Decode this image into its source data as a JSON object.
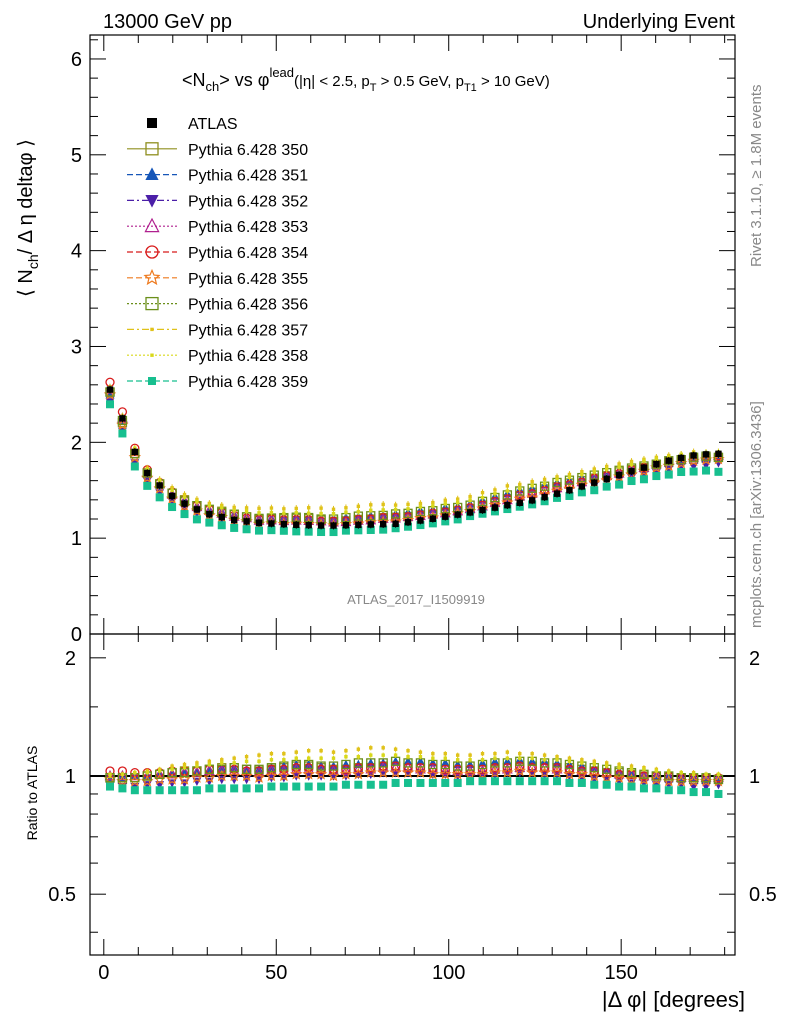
{
  "header": {
    "left": "13000 GeV pp",
    "right": "Underlying Event"
  },
  "plot_title": {
    "main": "<N",
    "main_sub": "ch",
    "main_rest": "> vs φ",
    "main_sup": "lead",
    "cuts": "(|η| < 2.5, p",
    "cuts_sub1": "T",
    "cuts_mid": " > 0.5 GeV, p",
    "cuts_sub2": "T1",
    "cuts_end": " > 10 GeV)"
  },
  "side_labels": {
    "rivet": "Rivet 3.1.10, ≥ 1.8M events",
    "mcplots": "mcplots.cern.ch [arXiv:1306.3436]",
    "analysis": "ATLAS_2017_I1509919"
  },
  "axes": {
    "ylabel_main": "⟨ N",
    "ylabel_main_sub": "ch",
    "ylabel_main_rest": "/ Δ η deltaφ ⟩",
    "ylabel_ratio": "Ratio to ATLAS",
    "xlabel": "|Δ φ| [degrees]",
    "main_ticks": [
      "0",
      "1",
      "2",
      "3",
      "4",
      "5",
      "6"
    ],
    "ratio_ticks": [
      "0.5",
      "1",
      "2"
    ],
    "x_ticks": [
      "0",
      "50",
      "100",
      "150"
    ]
  },
  "legend": [
    {
      "label": "ATLAS",
      "color": "#000000",
      "marker": "filled-square",
      "line": "none"
    },
    {
      "label": "Pythia 6.428 350",
      "color": "#8f8f1f",
      "marker": "open-square",
      "line": "solid"
    },
    {
      "label": "Pythia 6.428 351",
      "color": "#1656b8",
      "marker": "filled-triangle-up",
      "line": "dashed"
    },
    {
      "label": "Pythia 6.428 352",
      "color": "#4b1fa8",
      "marker": "filled-triangle-down",
      "line": "dashdot"
    },
    {
      "label": "Pythia 6.428 353",
      "color": "#b0208f",
      "marker": "open-triangle-up",
      "line": "dotted"
    },
    {
      "label": "Pythia 6.428 354",
      "color": "#d81b1b",
      "marker": "open-circle",
      "line": "dashed"
    },
    {
      "label": "Pythia 6.428 355",
      "color": "#ee7a1e",
      "marker": "open-star",
      "line": "dashed"
    },
    {
      "label": "Pythia 6.428 356",
      "color": "#6b8f1a",
      "marker": "open-square",
      "line": "dotted"
    },
    {
      "label": "Pythia 6.428 357",
      "color": "#e0c21a",
      "marker": "small-dot",
      "line": "dashdot"
    },
    {
      "label": "Pythia 6.428 358",
      "color": "#d8d81a",
      "marker": "small-dot",
      "line": "dotted"
    },
    {
      "label": "Pythia 6.428 359",
      "color": "#17bf8f",
      "marker": "filled-square",
      "line": "dashed"
    }
  ],
  "chart_data": {
    "type": "scatter",
    "title": "<Nch> vs φlead (|η| < 2.5, pT > 0.5 GeV, pT1 > 10 GeV)",
    "xlabel": "|Δ φ| [degrees]",
    "ylabel": "⟨ Nch / Δ η deltaφ ⟩",
    "ratio_ylabel": "Ratio to ATLAS",
    "xlim": [
      -4,
      183
    ],
    "ylim": [
      0,
      6.25
    ],
    "ratio_ylim": [
      0.35,
      2.3
    ],
    "ratio_log_scale": true,
    "x_spacing": 3.6,
    "x_first": 1.8,
    "n_points": 50,
    "reference": {
      "name": "ATLAS",
      "knots_x": [
        1.8,
        5.4,
        9,
        12.6,
        16.2,
        19.8,
        23.4,
        27,
        30.6,
        34.2,
        37.8,
        45,
        55,
        65,
        75,
        85,
        95,
        105,
        115,
        125,
        135,
        145,
        155,
        165,
        172,
        178.2
      ],
      "knots_y": [
        2.55,
        2.25,
        1.9,
        1.68,
        1.55,
        1.44,
        1.36,
        1.3,
        1.25,
        1.22,
        1.19,
        1.16,
        1.14,
        1.13,
        1.14,
        1.15,
        1.2,
        1.26,
        1.33,
        1.4,
        1.5,
        1.61,
        1.72,
        1.82,
        1.87,
        1.88
      ]
    },
    "series": [
      {
        "name": "Pythia 6.428 350",
        "ratio": [
          0.99,
          0.98,
          0.99,
          1.0,
          1.01,
          1.02,
          1.03,
          1.03,
          1.04,
          1.05,
          1.05,
          1.04,
          1.03,
          1.04,
          1.05,
          1.06,
          1.06,
          1.05,
          1.04,
          1.04,
          1.05,
          1.05,
          1.06,
          1.06,
          1.05,
          1.05,
          1.04,
          1.04,
          1.03,
          1.03,
          1.04,
          1.04,
          1.05,
          1.05,
          1.06,
          1.06,
          1.05,
          1.05,
          1.04,
          1.03,
          1.02,
          1.02,
          1.01,
          1.0,
          1.0,
          0.99,
          0.99,
          0.98,
          0.98,
          0.98
        ]
      },
      {
        "name": "Pythia 6.428 351",
        "ratio": [
          0.98,
          0.99,
          1.0,
          1.0,
          1.01,
          1.02,
          1.03,
          1.03,
          1.04,
          1.05,
          1.05,
          1.04,
          1.04,
          1.05,
          1.06,
          1.07,
          1.07,
          1.06,
          1.06,
          1.07,
          1.07,
          1.08,
          1.08,
          1.09,
          1.09,
          1.09,
          1.08,
          1.08,
          1.07,
          1.07,
          1.08,
          1.09,
          1.09,
          1.1,
          1.09,
          1.09,
          1.08,
          1.07,
          1.06,
          1.05,
          1.04,
          1.03,
          1.02,
          1.01,
          1.0,
          1.0,
          0.99,
          0.99,
          0.98,
          0.98
        ]
      },
      {
        "name": "Pythia 6.428 352",
        "ratio": [
          0.95,
          0.94,
          0.94,
          0.95,
          0.95,
          0.96,
          0.96,
          0.97,
          0.97,
          0.98,
          0.98,
          0.98,
          0.98,
          0.99,
          0.99,
          1.0,
          1.0,
          1.0,
          1.0,
          1.0,
          1.01,
          1.01,
          1.02,
          1.02,
          1.02,
          1.02,
          1.01,
          1.01,
          1.0,
          1.0,
          1.01,
          1.01,
          1.02,
          1.02,
          1.02,
          1.01,
          1.01,
          1.0,
          0.99,
          0.98,
          0.98,
          0.97,
          0.96,
          0.96,
          0.95,
          0.95,
          0.95,
          0.94,
          0.94,
          0.95
        ]
      },
      {
        "name": "Pythia 6.428 353",
        "ratio": [
          1.0,
          1.0,
          1.0,
          1.0,
          1.01,
          1.01,
          1.02,
          1.02,
          1.03,
          1.03,
          1.03,
          1.03,
          1.02,
          1.03,
          1.03,
          1.04,
          1.04,
          1.04,
          1.03,
          1.03,
          1.04,
          1.04,
          1.05,
          1.05,
          1.05,
          1.04,
          1.04,
          1.03,
          1.03,
          1.03,
          1.03,
          1.04,
          1.04,
          1.05,
          1.05,
          1.05,
          1.04,
          1.04,
          1.03,
          1.03,
          1.02,
          1.01,
          1.01,
          1.0,
          1.0,
          1.0,
          0.99,
          0.99,
          0.99,
          0.99
        ]
      },
      {
        "name": "Pythia 6.428 354",
        "ratio": [
          1.03,
          1.03,
          1.02,
          1.02,
          1.02,
          1.03,
          1.03,
          1.03,
          1.04,
          1.04,
          1.04,
          1.03,
          1.03,
          1.04,
          1.04,
          1.05,
          1.05,
          1.04,
          1.04,
          1.04,
          1.05,
          1.05,
          1.06,
          1.06,
          1.05,
          1.05,
          1.05,
          1.04,
          1.04,
          1.04,
          1.04,
          1.05,
          1.05,
          1.06,
          1.05,
          1.05,
          1.05,
          1.04,
          1.03,
          1.03,
          1.02,
          1.01,
          1.01,
          1.0,
          1.0,
          1.0,
          0.99,
          0.99,
          0.99,
          0.99
        ]
      },
      {
        "name": "Pythia 6.428 355",
        "ratio": [
          0.98,
          0.97,
          0.97,
          0.97,
          0.98,
          0.98,
          0.98,
          0.99,
          0.99,
          1.0,
          1.0,
          1.0,
          0.99,
          1.0,
          1.0,
          1.01,
          1.01,
          1.01,
          1.0,
          1.01,
          1.01,
          1.02,
          1.02,
          1.02,
          1.02,
          1.02,
          1.01,
          1.01,
          1.01,
          1.01,
          1.01,
          1.02,
          1.02,
          1.03,
          1.02,
          1.02,
          1.02,
          1.01,
          1.01,
          1.0,
          0.99,
          0.99,
          0.98,
          0.98,
          0.98,
          0.97,
          0.97,
          0.97,
          0.97,
          0.97
        ]
      },
      {
        "name": "Pythia 6.428 356",
        "ratio": [
          0.99,
          0.99,
          0.99,
          1.0,
          1.01,
          1.02,
          1.02,
          1.03,
          1.04,
          1.04,
          1.05,
          1.04,
          1.04,
          1.05,
          1.06,
          1.07,
          1.07,
          1.06,
          1.06,
          1.07,
          1.08,
          1.08,
          1.08,
          1.09,
          1.08,
          1.08,
          1.07,
          1.07,
          1.06,
          1.06,
          1.07,
          1.08,
          1.08,
          1.09,
          1.09,
          1.08,
          1.08,
          1.07,
          1.06,
          1.05,
          1.04,
          1.03,
          1.02,
          1.01,
          1.0,
          1.0,
          0.99,
          0.99,
          0.99,
          0.98
        ]
      },
      {
        "name": "Pythia 6.428 357",
        "ratio": [
          1.0,
          1.01,
          1.02,
          1.03,
          1.04,
          1.06,
          1.07,
          1.08,
          1.09,
          1.1,
          1.11,
          1.12,
          1.13,
          1.14,
          1.14,
          1.15,
          1.16,
          1.16,
          1.15,
          1.16,
          1.17,
          1.18,
          1.18,
          1.17,
          1.16,
          1.15,
          1.14,
          1.14,
          1.13,
          1.13,
          1.14,
          1.14,
          1.15,
          1.14,
          1.14,
          1.13,
          1.12,
          1.11,
          1.1,
          1.09,
          1.08,
          1.07,
          1.06,
          1.05,
          1.04,
          1.03,
          1.02,
          1.02,
          1.01,
          1.01
        ]
      },
      {
        "name": "Pythia 6.428 358",
        "ratio": [
          1.01,
          1.01,
          1.02,
          1.02,
          1.03,
          1.04,
          1.05,
          1.06,
          1.07,
          1.08,
          1.08,
          1.09,
          1.09,
          1.1,
          1.1,
          1.11,
          1.11,
          1.11,
          1.11,
          1.12,
          1.12,
          1.13,
          1.13,
          1.13,
          1.12,
          1.12,
          1.11,
          1.11,
          1.1,
          1.1,
          1.1,
          1.11,
          1.11,
          1.11,
          1.11,
          1.1,
          1.1,
          1.09,
          1.08,
          1.07,
          1.06,
          1.05,
          1.04,
          1.04,
          1.03,
          1.02,
          1.02,
          1.01,
          1.01,
          1.01
        ]
      },
      {
        "name": "Pythia 6.428 359",
        "ratio": [
          0.94,
          0.93,
          0.92,
          0.92,
          0.92,
          0.92,
          0.92,
          0.92,
          0.93,
          0.93,
          0.93,
          0.93,
          0.93,
          0.94,
          0.94,
          0.94,
          0.94,
          0.94,
          0.94,
          0.95,
          0.95,
          0.95,
          0.95,
          0.96,
          0.96,
          0.96,
          0.96,
          0.96,
          0.96,
          0.97,
          0.97,
          0.97,
          0.97,
          0.97,
          0.97,
          0.97,
          0.97,
          0.96,
          0.96,
          0.95,
          0.95,
          0.94,
          0.94,
          0.93,
          0.93,
          0.92,
          0.92,
          0.91,
          0.91,
          0.9
        ]
      }
    ]
  }
}
